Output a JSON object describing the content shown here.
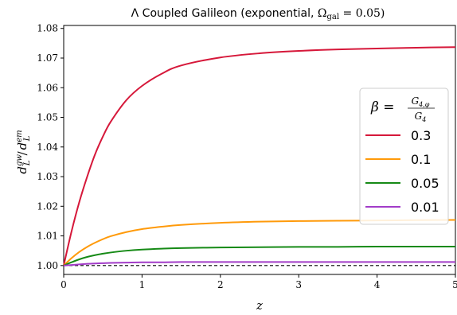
{
  "chart_data": {
    "type": "line",
    "title": "Λ Coupled Galileon (exponential, Ωgal = 0.05)",
    "title_main": "Λ Coupled Galileon (exponential, ",
    "title_omega": "Ω",
    "title_omega_sub": "gal",
    "title_omega_value": " = 0.05)",
    "xlabel": "z",
    "ylabel": "dL^gw / dL^em",
    "ylabel_main_left": "d",
    "ylabel_sub_left": "L",
    "ylabel_sup_left": "gw",
    "ylabel_slash": "/",
    "ylabel_main_right": "d",
    "ylabel_sub_right": "L",
    "ylabel_sup_right": "em",
    "xlim": [
      0,
      5
    ],
    "ylim": [
      0.997,
      1.081
    ],
    "x_ticks": [
      0,
      1,
      2,
      3,
      4,
      5
    ],
    "x_tick_labels": [
      "0",
      "1",
      "2",
      "3",
      "4",
      "5"
    ],
    "y_ticks": [
      1.0,
      1.01,
      1.02,
      1.03,
      1.04,
      1.05,
      1.06,
      1.07,
      1.08
    ],
    "y_tick_labels": [
      "1.00",
      "1.01",
      "1.02",
      "1.03",
      "1.04",
      "1.05",
      "1.06",
      "1.07",
      "1.08"
    ],
    "grid": false,
    "legend": {
      "placement": "center-right",
      "title": "β = G4,φ / G4",
      "title_beta": "β =",
      "title_num": "G",
      "title_num_sub": "4,φ",
      "title_den": "G",
      "title_den_sub": "4"
    },
    "reference_line": {
      "y": 1.0,
      "style": "dashed",
      "color": "#000000"
    },
    "series": [
      {
        "name": "0.3",
        "color": "#d6183a",
        "x": [
          0,
          0.1,
          0.2,
          0.3,
          0.4,
          0.5,
          0.6,
          0.8,
          1.0,
          1.25,
          1.5,
          2.0,
          2.5,
          3.0,
          3.5,
          4.0,
          4.5,
          5.0
        ],
        "y": [
          1.0,
          1.0115,
          1.0215,
          1.03,
          1.0375,
          1.0435,
          1.0485,
          1.0558,
          1.0606,
          1.0647,
          1.0675,
          1.0702,
          1.0716,
          1.0724,
          1.0729,
          1.0732,
          1.0735,
          1.0737
        ]
      },
      {
        "name": "0.1",
        "color": "#ff9a0a",
        "x": [
          0,
          0.1,
          0.2,
          0.3,
          0.4,
          0.5,
          0.6,
          0.8,
          1.0,
          1.25,
          1.5,
          2.0,
          2.5,
          3.0,
          3.5,
          4.0,
          4.5,
          5.0
        ],
        "y": [
          1.0,
          1.0025,
          1.0046,
          1.0063,
          1.0077,
          1.0089,
          1.0099,
          1.0113,
          1.0123,
          1.0131,
          1.0137,
          1.0144,
          1.0148,
          1.015,
          1.0151,
          1.0152,
          1.0153,
          1.0154
        ]
      },
      {
        "name": "0.05",
        "color": "#168a16",
        "x": [
          0,
          0.1,
          0.2,
          0.3,
          0.4,
          0.5,
          0.6,
          0.8,
          1.0,
          1.25,
          1.5,
          2.0,
          2.5,
          3.0,
          3.5,
          4.0,
          4.5,
          5.0
        ],
        "y": [
          1.0,
          1.0011,
          1.0021,
          1.0029,
          1.0035,
          1.004,
          1.0044,
          1.005,
          1.0054,
          1.0057,
          1.0059,
          1.0061,
          1.0062,
          1.0063,
          1.0063,
          1.0064,
          1.0064,
          1.0064
        ]
      },
      {
        "name": "0.01",
        "color": "#a23cc8",
        "x": [
          0,
          0.1,
          0.2,
          0.3,
          0.4,
          0.5,
          0.6,
          0.8,
          1.0,
          1.25,
          1.5,
          2.0,
          2.5,
          3.0,
          3.5,
          4.0,
          4.5,
          5.0
        ],
        "y": [
          1.0,
          1.0002,
          1.0004,
          1.0006,
          1.0007,
          1.0008,
          1.0009,
          1.001,
          1.0011,
          1.0011,
          1.0012,
          1.0012,
          1.0012,
          1.0012,
          1.0012,
          1.0012,
          1.0012,
          1.0012
        ]
      }
    ]
  }
}
